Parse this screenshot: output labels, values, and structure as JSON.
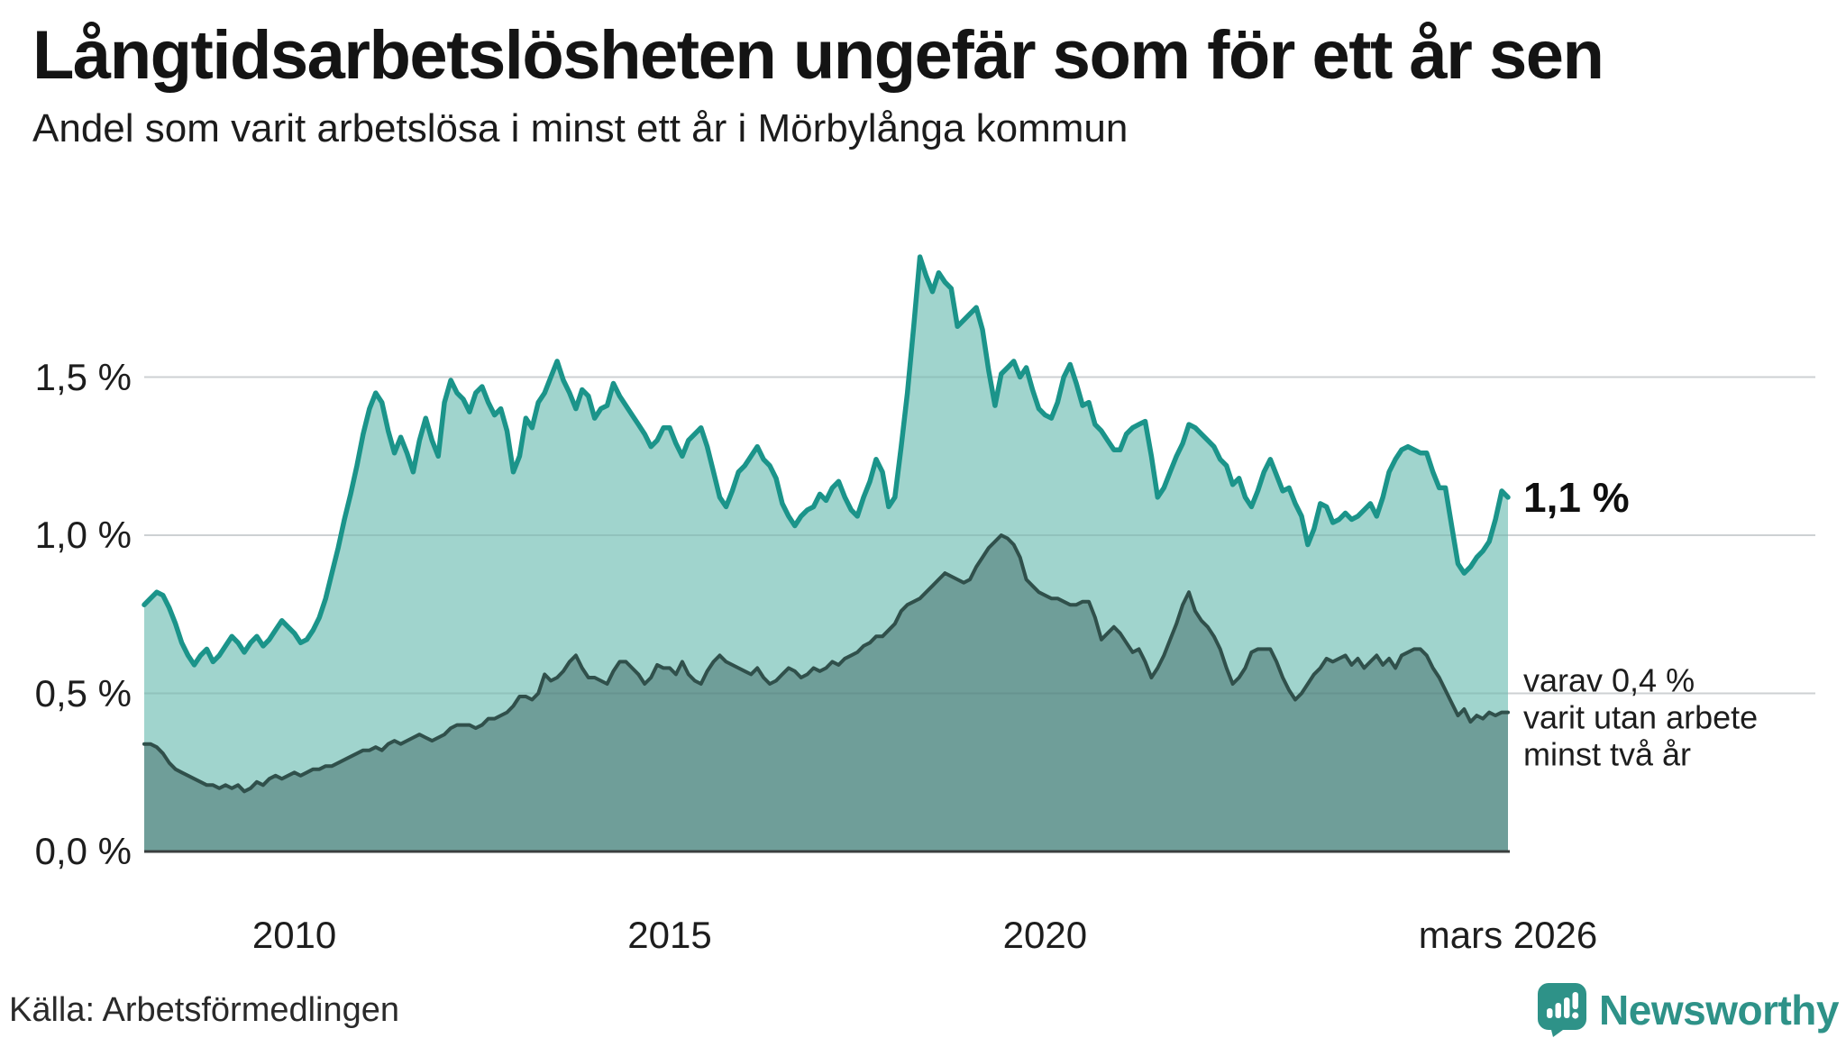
{
  "header": {
    "title": "Långtidsarbetslösheten ungefär som för ett år sen",
    "subtitle": "Andel som varit arbetslösa i minst ett år i Mörbylånga kommun"
  },
  "chart_data": {
    "type": "area",
    "title": "Långtidsarbetslösheten ungefär som för ett år sen",
    "subtitle": "Andel som varit arbetslösa i minst ett år i Mörbylånga kommun",
    "unit": "%",
    "frequency": "monthly",
    "x_start_year": 2008.0,
    "x_end_year": 2026.167,
    "ylim": [
      0,
      1.95
    ],
    "grid": true,
    "y_ticks": [
      {
        "value": 1.5,
        "label": "1,5 %"
      },
      {
        "value": 1.0,
        "label": "1,0 %"
      },
      {
        "value": 0.5,
        "label": "0,5 %"
      },
      {
        "value": 0.0,
        "label": "0,0 %"
      }
    ],
    "x_ticks": [
      {
        "year": 2010,
        "label": "2010"
      },
      {
        "year": 2015,
        "label": "2015"
      },
      {
        "year": 2020,
        "label": "2020"
      },
      {
        "year": 2026.167,
        "label": "mars 2026"
      }
    ],
    "series": [
      {
        "name": "Andel arbetslösa minst ett år",
        "line_color": "#1b948a",
        "fill_color": "#a0d4cd",
        "latest_value": 1.1,
        "values": [
          0.78,
          0.8,
          0.82,
          0.81,
          0.77,
          0.72,
          0.66,
          0.62,
          0.59,
          0.62,
          0.64,
          0.6,
          0.62,
          0.65,
          0.68,
          0.66,
          0.63,
          0.66,
          0.68,
          0.65,
          0.67,
          0.7,
          0.73,
          0.71,
          0.69,
          0.66,
          0.67,
          0.7,
          0.74,
          0.8,
          0.88,
          0.96,
          1.05,
          1.13,
          1.22,
          1.32,
          1.4,
          1.45,
          1.42,
          1.33,
          1.26,
          1.31,
          1.26,
          1.2,
          1.3,
          1.37,
          1.3,
          1.25,
          1.42,
          1.49,
          1.45,
          1.43,
          1.39,
          1.45,
          1.47,
          1.42,
          1.38,
          1.4,
          1.33,
          1.2,
          1.25,
          1.37,
          1.34,
          1.42,
          1.45,
          1.5,
          1.55,
          1.49,
          1.45,
          1.4,
          1.46,
          1.44,
          1.37,
          1.4,
          1.41,
          1.48,
          1.44,
          1.41,
          1.38,
          1.35,
          1.32,
          1.28,
          1.3,
          1.34,
          1.34,
          1.29,
          1.25,
          1.3,
          1.32,
          1.34,
          1.28,
          1.2,
          1.12,
          1.09,
          1.14,
          1.2,
          1.22,
          1.25,
          1.28,
          1.24,
          1.22,
          1.18,
          1.1,
          1.06,
          1.03,
          1.06,
          1.08,
          1.09,
          1.13,
          1.11,
          1.15,
          1.17,
          1.12,
          1.08,
          1.06,
          1.12,
          1.17,
          1.24,
          1.2,
          1.09,
          1.12,
          1.28,
          1.45,
          1.66,
          1.88,
          1.82,
          1.77,
          1.83,
          1.8,
          1.78,
          1.66,
          1.68,
          1.7,
          1.72,
          1.65,
          1.52,
          1.41,
          1.51,
          1.53,
          1.55,
          1.5,
          1.53,
          1.46,
          1.4,
          1.38,
          1.37,
          1.42,
          1.5,
          1.54,
          1.48,
          1.41,
          1.42,
          1.35,
          1.33,
          1.3,
          1.27,
          1.27,
          1.32,
          1.34,
          1.35,
          1.36,
          1.25,
          1.12,
          1.15,
          1.2,
          1.25,
          1.29,
          1.35,
          1.34,
          1.32,
          1.3,
          1.28,
          1.24,
          1.22,
          1.16,
          1.18,
          1.12,
          1.09,
          1.14,
          1.2,
          1.24,
          1.19,
          1.14,
          1.15,
          1.1,
          1.06,
          0.97,
          1.02,
          1.1,
          1.09,
          1.04,
          1.05,
          1.07,
          1.05,
          1.06,
          1.08,
          1.1,
          1.06,
          1.12,
          1.2,
          1.24,
          1.27,
          1.28,
          1.27,
          1.26,
          1.26,
          1.2,
          1.15,
          1.15,
          1.03,
          0.91,
          0.88,
          0.9,
          0.93,
          0.95,
          0.98,
          1.05,
          1.14,
          1.12
        ]
      },
      {
        "name": "Andel arbetslösa minst två år",
        "line_color": "#30504b",
        "fill_color": "#6f9e99",
        "latest_value": 0.4,
        "values": [
          0.34,
          0.34,
          0.33,
          0.31,
          0.28,
          0.26,
          0.25,
          0.24,
          0.23,
          0.22,
          0.21,
          0.21,
          0.2,
          0.21,
          0.2,
          0.21,
          0.19,
          0.2,
          0.22,
          0.21,
          0.23,
          0.24,
          0.23,
          0.24,
          0.25,
          0.24,
          0.25,
          0.26,
          0.26,
          0.27,
          0.27,
          0.28,
          0.29,
          0.3,
          0.31,
          0.32,
          0.32,
          0.33,
          0.32,
          0.34,
          0.35,
          0.34,
          0.35,
          0.36,
          0.37,
          0.36,
          0.35,
          0.36,
          0.37,
          0.39,
          0.4,
          0.4,
          0.4,
          0.39,
          0.4,
          0.42,
          0.42,
          0.43,
          0.44,
          0.46,
          0.49,
          0.49,
          0.48,
          0.5,
          0.56,
          0.54,
          0.55,
          0.57,
          0.6,
          0.62,
          0.58,
          0.55,
          0.55,
          0.54,
          0.53,
          0.57,
          0.6,
          0.6,
          0.58,
          0.56,
          0.53,
          0.55,
          0.59,
          0.58,
          0.58,
          0.56,
          0.6,
          0.56,
          0.54,
          0.53,
          0.57,
          0.6,
          0.62,
          0.6,
          0.59,
          0.58,
          0.57,
          0.56,
          0.58,
          0.55,
          0.53,
          0.54,
          0.56,
          0.58,
          0.57,
          0.55,
          0.56,
          0.58,
          0.57,
          0.58,
          0.6,
          0.59,
          0.61,
          0.62,
          0.63,
          0.65,
          0.66,
          0.68,
          0.68,
          0.7,
          0.72,
          0.76,
          0.78,
          0.79,
          0.8,
          0.82,
          0.84,
          0.86,
          0.88,
          0.87,
          0.86,
          0.85,
          0.86,
          0.9,
          0.93,
          0.96,
          0.98,
          1.0,
          0.99,
          0.97,
          0.93,
          0.86,
          0.84,
          0.82,
          0.81,
          0.8,
          0.8,
          0.79,
          0.78,
          0.78,
          0.79,
          0.79,
          0.74,
          0.67,
          0.69,
          0.71,
          0.69,
          0.66,
          0.63,
          0.64,
          0.6,
          0.55,
          0.58,
          0.62,
          0.67,
          0.72,
          0.78,
          0.82,
          0.76,
          0.73,
          0.71,
          0.68,
          0.64,
          0.58,
          0.53,
          0.55,
          0.58,
          0.63,
          0.64,
          0.64,
          0.64,
          0.6,
          0.55,
          0.51,
          0.48,
          0.5,
          0.53,
          0.56,
          0.58,
          0.61,
          0.6,
          0.61,
          0.62,
          0.59,
          0.61,
          0.58,
          0.6,
          0.62,
          0.59,
          0.61,
          0.58,
          0.62,
          0.63,
          0.64,
          0.64,
          0.62,
          0.58,
          0.55,
          0.51,
          0.47,
          0.43,
          0.45,
          0.41,
          0.43,
          0.42,
          0.44,
          0.43,
          0.44,
          0.44
        ]
      }
    ],
    "annotations": {
      "latest_total_label": "1,1 %",
      "two_year_note_lines": [
        "varav 0,4 %",
        "varit utan arbete",
        "minst två år"
      ]
    }
  },
  "footer": {
    "source": "Källa: Arbetsförmedlingen",
    "brand": "Newsworthy"
  },
  "colors": {
    "accent_line": "#1b948a",
    "accent_fill": "#a0d4cd",
    "dark_line": "#30504b",
    "dark_fill": "#6f9e99",
    "grid": "#e6e6e8",
    "axis": "#3a3f3e",
    "brand": "#2e9288"
  }
}
